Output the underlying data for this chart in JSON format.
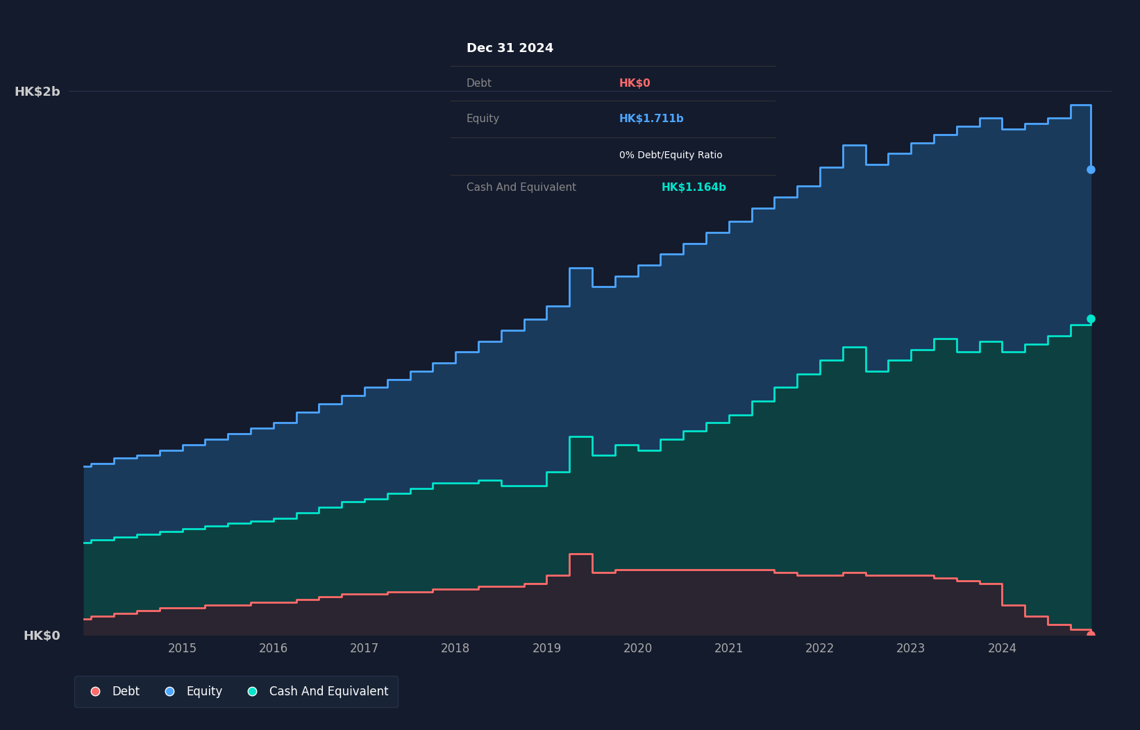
{
  "bg_color": "#141B2D",
  "plot_bg_color": "#141B2D",
  "equity_color": "#4DA6FF",
  "cash_color": "#00E5CC",
  "debt_color": "#FF6B6B",
  "equity_fill": "#1A3A5C",
  "cash_fill": "#0D4040",
  "debt_fill_color": "#2A2530",
  "grid_color": "#2A3550",
  "ytick_color": "#CCCCCC",
  "xtick_color": "#AAAAAA",
  "ylim": [
    0,
    2.2
  ],
  "ytick_labels": [
    "HK$0",
    "HK$2b"
  ],
  "ytick_values": [
    0.0,
    2.0
  ],
  "xtick_labels": [
    "2015",
    "2016",
    "2017",
    "2018",
    "2019",
    "2020",
    "2021",
    "2022",
    "2023",
    "2024"
  ],
  "tooltip_title": "Dec 31 2024",
  "tooltip_debt_label": "Debt",
  "tooltip_debt_val": "HK$0",
  "tooltip_equity_label": "Equity",
  "tooltip_equity_val": "HK$1.711b",
  "tooltip_ratio": "0% Debt/Equity Ratio",
  "tooltip_cash_label": "Cash And Equivalent",
  "tooltip_cash_val": "HK$1.164b",
  "legend_items": [
    "Debt",
    "Equity",
    "Cash And Equivalent"
  ],
  "dates": [
    2013.92,
    2014.0,
    2014.25,
    2014.5,
    2014.75,
    2015.0,
    2015.25,
    2015.5,
    2015.75,
    2016.0,
    2016.25,
    2016.5,
    2016.75,
    2017.0,
    2017.25,
    2017.5,
    2017.75,
    2018.0,
    2018.25,
    2018.5,
    2018.75,
    2019.0,
    2019.25,
    2019.5,
    2019.75,
    2020.0,
    2020.25,
    2020.5,
    2020.75,
    2021.0,
    2021.25,
    2021.5,
    2021.75,
    2022.0,
    2022.25,
    2022.5,
    2022.75,
    2023.0,
    2023.25,
    2023.5,
    2023.75,
    2024.0,
    2024.25,
    2024.5,
    2024.75,
    2024.97
  ],
  "equity": [
    0.62,
    0.63,
    0.65,
    0.66,
    0.68,
    0.7,
    0.72,
    0.74,
    0.76,
    0.78,
    0.82,
    0.85,
    0.88,
    0.91,
    0.94,
    0.97,
    1.0,
    1.04,
    1.08,
    1.12,
    1.16,
    1.21,
    1.35,
    1.28,
    1.32,
    1.36,
    1.4,
    1.44,
    1.48,
    1.52,
    1.57,
    1.61,
    1.65,
    1.72,
    1.8,
    1.73,
    1.77,
    1.81,
    1.84,
    1.87,
    1.9,
    1.86,
    1.88,
    1.9,
    1.95,
    1.711
  ],
  "cash": [
    0.34,
    0.35,
    0.36,
    0.37,
    0.38,
    0.39,
    0.4,
    0.41,
    0.42,
    0.43,
    0.45,
    0.47,
    0.49,
    0.5,
    0.52,
    0.54,
    0.56,
    0.56,
    0.57,
    0.55,
    0.55,
    0.6,
    0.73,
    0.66,
    0.7,
    0.68,
    0.72,
    0.75,
    0.78,
    0.81,
    0.86,
    0.91,
    0.96,
    1.01,
    1.06,
    0.97,
    1.01,
    1.05,
    1.09,
    1.04,
    1.08,
    1.04,
    1.07,
    1.1,
    1.14,
    1.164
  ],
  "debt": [
    0.06,
    0.07,
    0.08,
    0.09,
    0.1,
    0.1,
    0.11,
    0.11,
    0.12,
    0.12,
    0.13,
    0.14,
    0.15,
    0.15,
    0.16,
    0.16,
    0.17,
    0.17,
    0.18,
    0.18,
    0.19,
    0.22,
    0.3,
    0.23,
    0.24,
    0.24,
    0.24,
    0.24,
    0.24,
    0.24,
    0.24,
    0.23,
    0.22,
    0.22,
    0.23,
    0.22,
    0.22,
    0.22,
    0.21,
    0.2,
    0.19,
    0.11,
    0.07,
    0.04,
    0.02,
    0.0
  ]
}
